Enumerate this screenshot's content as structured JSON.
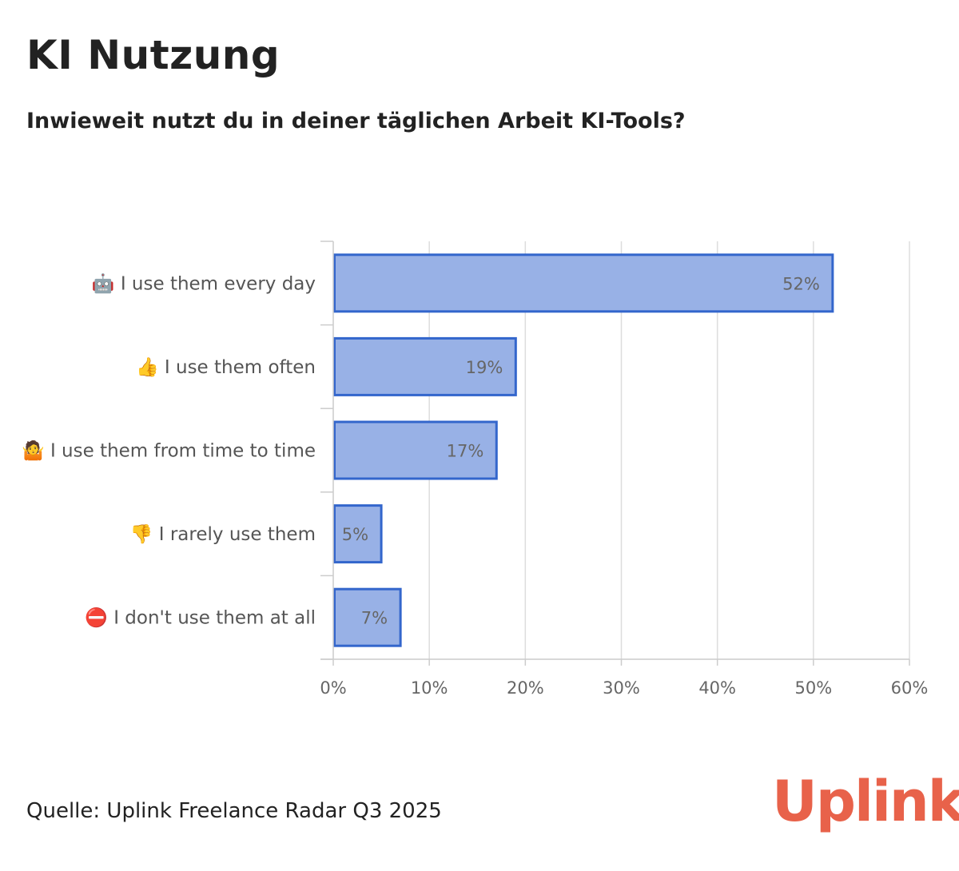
{
  "header": {
    "title": "KI Nutzung",
    "subtitle": "Inwieweit nutzt du in deiner täglichen Arbeit KI-Tools?"
  },
  "footer": {
    "source": "Quelle: Uplink Freelance Radar Q3 2025",
    "logo": "Uplink"
  },
  "colors": {
    "bar_fill": "#98b1e6",
    "bar_stroke": "#3366cc",
    "grid": "#dddddd",
    "text": "#222222",
    "logo": "#e8624a"
  },
  "chart_data": {
    "type": "bar",
    "orientation": "horizontal",
    "categories": [
      "🤖 I use them every day",
      "👍 I use them often",
      "🤷 I use them from time to time",
      "👎 I rarely use them",
      "⛔ I don't use them at all"
    ],
    "values": [
      52,
      19,
      17,
      5,
      7
    ],
    "value_labels": [
      "52%",
      "19%",
      "17%",
      "5%",
      "7%"
    ],
    "xlim": [
      0,
      60
    ],
    "ticks": [
      0,
      10,
      20,
      30,
      40,
      50,
      60
    ],
    "tick_labels": [
      "0%",
      "10%",
      "20%",
      "30%",
      "40%",
      "50%",
      "60%"
    ],
    "grid": true,
    "legend": "none",
    "xlabel": "",
    "ylabel": ""
  }
}
